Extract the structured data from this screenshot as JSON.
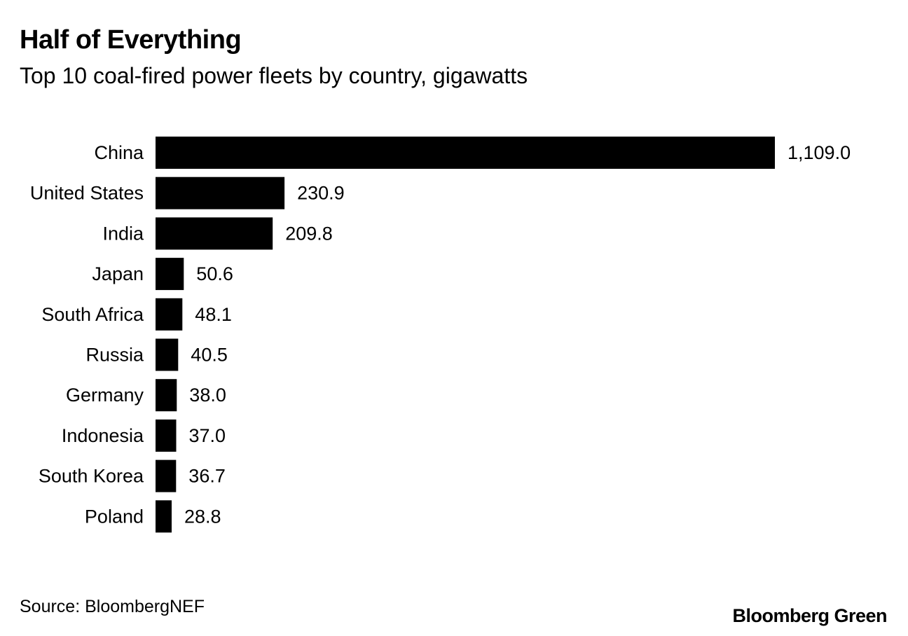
{
  "chart_data": {
    "type": "bar",
    "orientation": "horizontal",
    "title": "Half of Everything",
    "subtitle": "Top 10 coal-fired power fleets by country, gigawatts",
    "categories": [
      "China",
      "United States",
      "India",
      "Japan",
      "South Africa",
      "Russia",
      "Germany",
      "Indonesia",
      "South Korea",
      "Poland"
    ],
    "values": [
      1109.0,
      230.9,
      209.8,
      50.6,
      48.1,
      40.5,
      38.0,
      37.0,
      36.7,
      28.8
    ],
    "value_labels": [
      "1,109.0",
      "230.9",
      "209.8",
      "50.6",
      "48.1",
      "40.5",
      "38.0",
      "37.0",
      "36.7",
      "28.8"
    ],
    "xlim": [
      0,
      1109.0
    ],
    "bar_color": "#000000",
    "grid": false,
    "xlabel": "",
    "ylabel": ""
  },
  "footer": {
    "source": "Source: BloombergNEF",
    "brand": "Bloomberg Green"
  }
}
